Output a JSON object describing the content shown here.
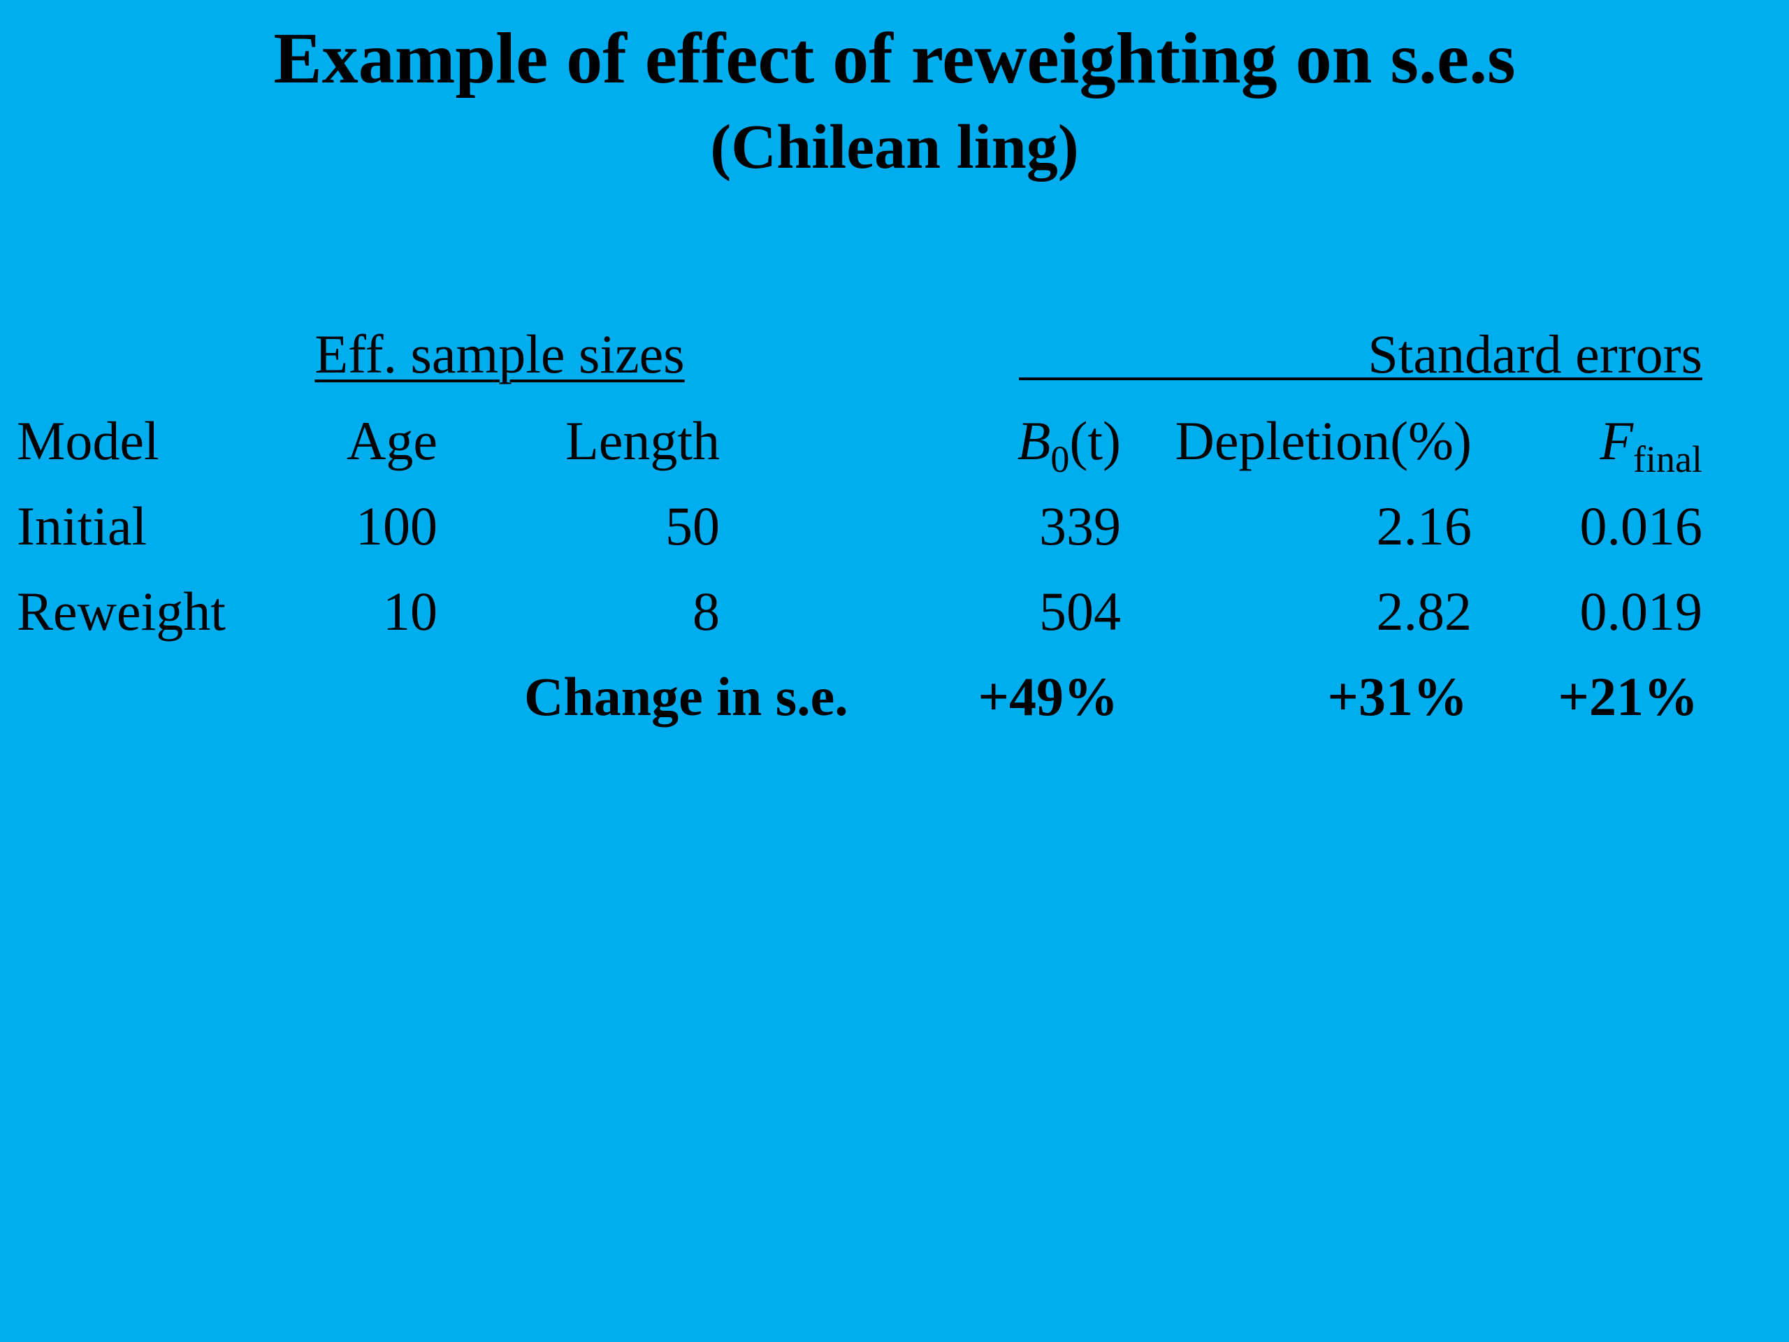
{
  "title": "Example of effect of reweighting on s.e.s",
  "subtitle": "(Chilean ling)",
  "table": {
    "group_headers": {
      "eff_sample_sizes": "Eff. sample sizes",
      "standard_errors": "Standard errors"
    },
    "columns": {
      "model": "Model",
      "age": "Age",
      "length": "Length",
      "b0_symbol": "B",
      "b0_subscript": "0",
      "b0_unit": "(t)",
      "depletion": "Depletion(%)",
      "f_symbol": "F",
      "f_subscript": "final"
    },
    "rows": [
      {
        "model": "Initial",
        "age": "100",
        "length": "50",
        "b0": "339",
        "depletion": "2.16",
        "f_final": "0.016"
      },
      {
        "model": "Reweight",
        "age": "10",
        "length": "8",
        "b0": "504",
        "depletion": "2.82",
        "f_final": "0.019"
      }
    ],
    "change_row": {
      "label": "Change in s.e.",
      "b0": "+49%",
      "depletion": "+31%",
      "f_final": "+21%"
    }
  }
}
